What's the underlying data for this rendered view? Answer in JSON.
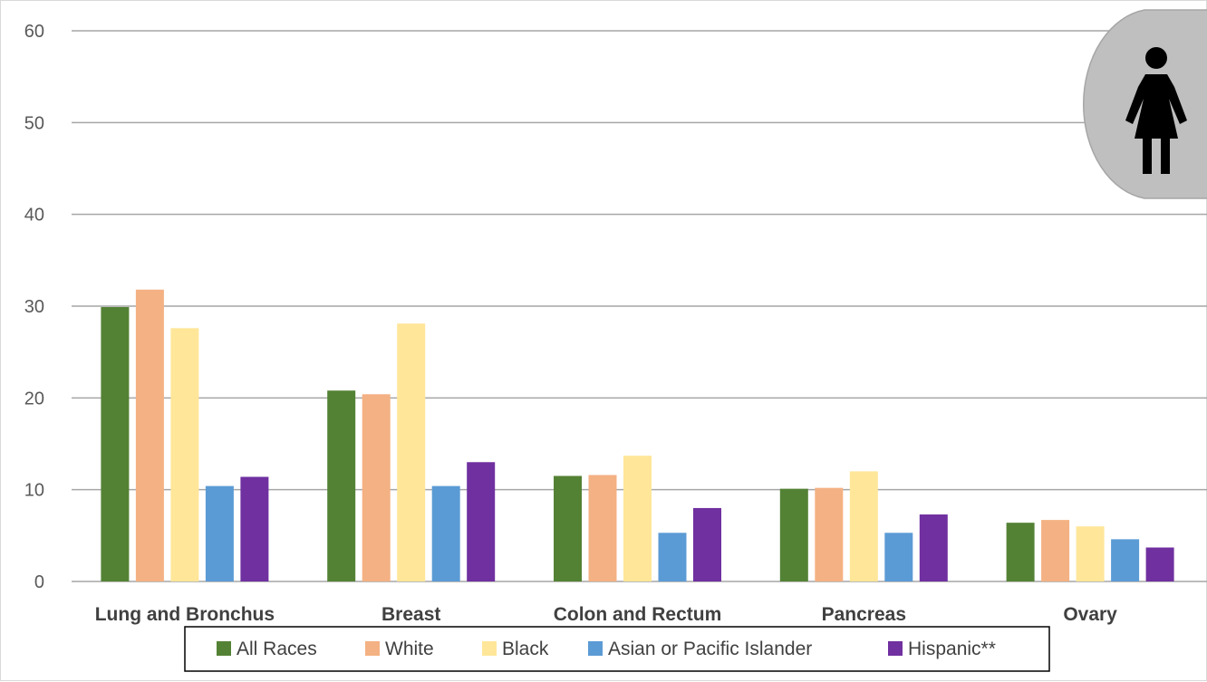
{
  "chart_data": {
    "type": "bar",
    "title": "",
    "xlabel": "",
    "ylabel": "",
    "ylim": [
      0,
      60
    ],
    "yticks": [
      "0",
      "10",
      "20",
      "30",
      "40",
      "50",
      "60"
    ],
    "grid": true,
    "legend_position": "bottom",
    "categories": [
      "Lung and Bronchus",
      "Breast",
      "Colon and Rectum",
      "Pancreas",
      "Ovary"
    ],
    "series": [
      {
        "name": "All Races",
        "color": "#548235",
        "values": [
          29.9,
          20.8,
          11.5,
          10.1,
          6.4
        ]
      },
      {
        "name": "White",
        "color": "#f4b183",
        "values": [
          31.8,
          20.4,
          11.6,
          10.2,
          6.7
        ]
      },
      {
        "name": "Black",
        "color": "#ffe699",
        "values": [
          27.6,
          28.1,
          13.7,
          12.0,
          6.0
        ]
      },
      {
        "name": "Asian or Pacific Islander",
        "color": "#5b9bd5",
        "values": [
          10.4,
          10.4,
          5.3,
          5.3,
          4.6
        ]
      },
      {
        "name": "Hispanic**",
        "color": "#7030a0",
        "values": [
          11.4,
          13.0,
          8.0,
          7.3,
          3.7
        ]
      }
    ],
    "badge_icon": "female-person-icon"
  }
}
